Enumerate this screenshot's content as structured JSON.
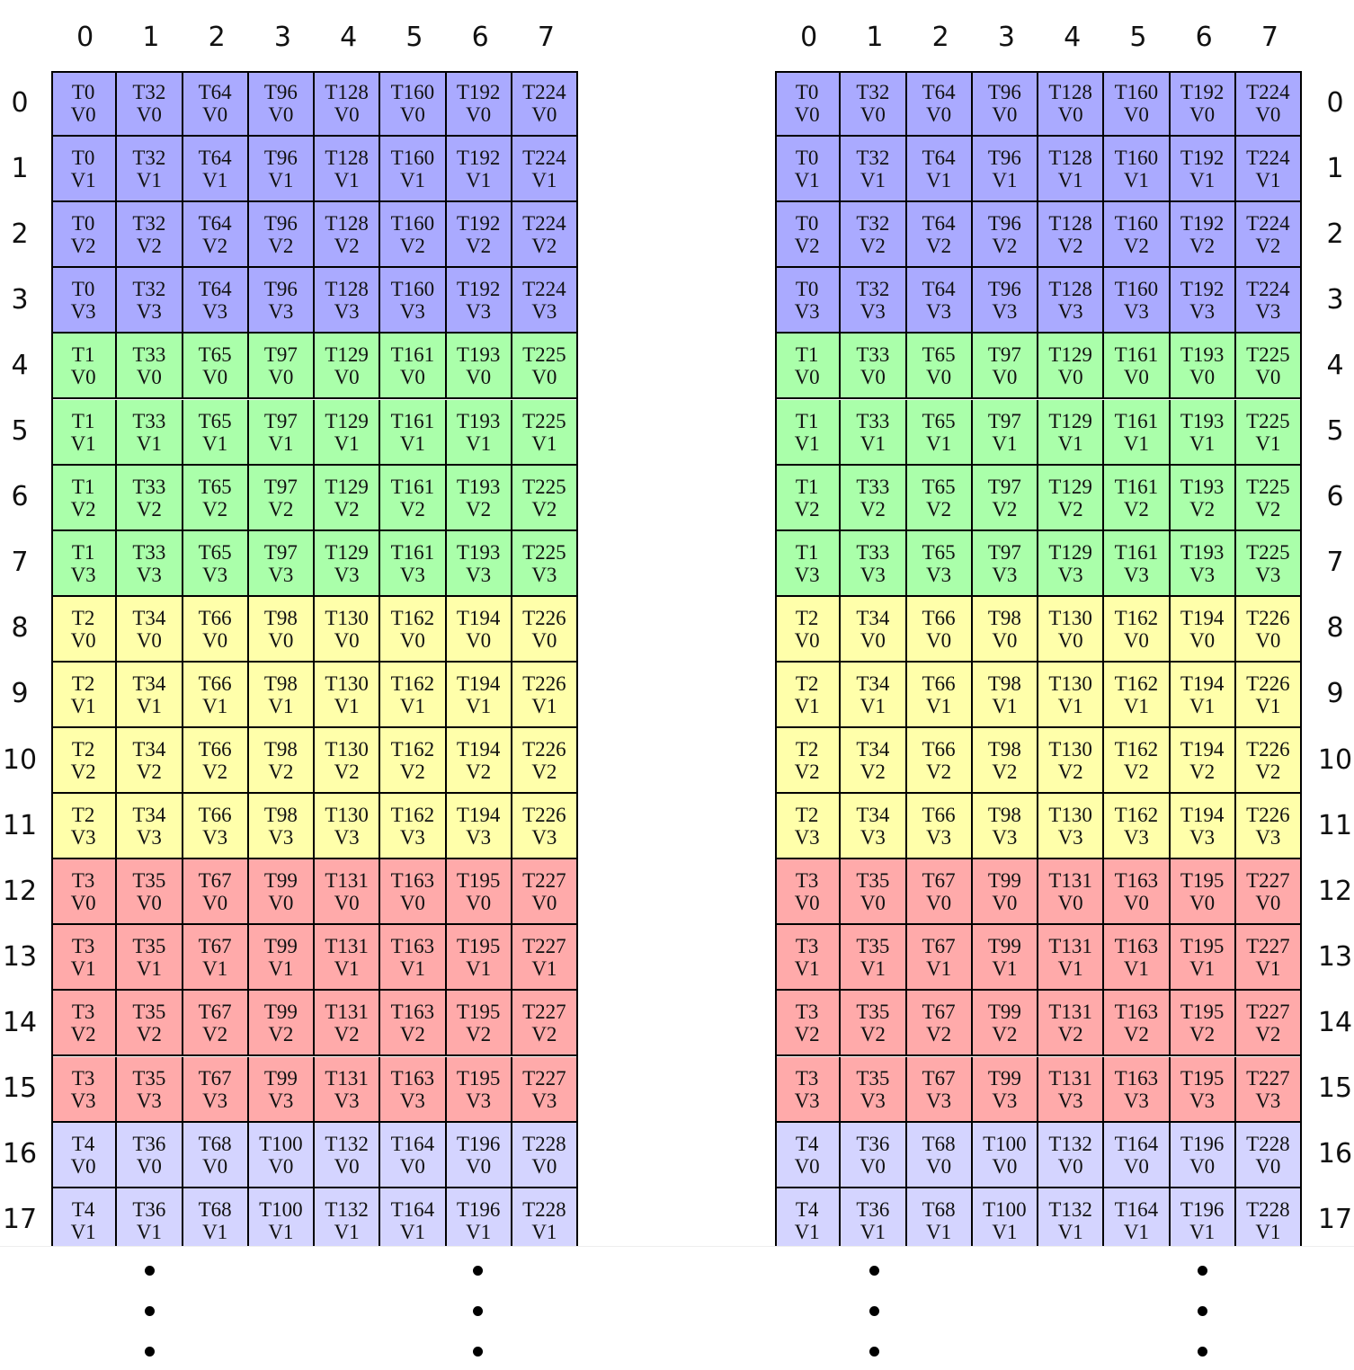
{
  "column_labels": [
    "0",
    "1",
    "2",
    "3",
    "4",
    "5",
    "6",
    "7"
  ],
  "colors": {
    "blue": "#aaaaff",
    "green": "#aaffaa",
    "yellow": "#ffffaa",
    "red": "#ffaaaa",
    "lavender": "#d4d4ff"
  },
  "rows": [
    {
      "label": "0",
      "value": "V0",
      "color": "#aaaaff",
      "threads": [
        "T0",
        "T32",
        "T64",
        "T96",
        "T128",
        "T160",
        "T192",
        "T224"
      ]
    },
    {
      "label": "1",
      "value": "V1",
      "color": "#aaaaff",
      "threads": [
        "T0",
        "T32",
        "T64",
        "T96",
        "T128",
        "T160",
        "T192",
        "T224"
      ]
    },
    {
      "label": "2",
      "value": "V2",
      "color": "#aaaaff",
      "threads": [
        "T0",
        "T32",
        "T64",
        "T96",
        "T128",
        "T160",
        "T192",
        "T224"
      ]
    },
    {
      "label": "3",
      "value": "V3",
      "color": "#aaaaff",
      "threads": [
        "T0",
        "T32",
        "T64",
        "T96",
        "T128",
        "T160",
        "T192",
        "T224"
      ]
    },
    {
      "label": "4",
      "value": "V0",
      "color": "#aaffaa",
      "threads": [
        "T1",
        "T33",
        "T65",
        "T97",
        "T129",
        "T161",
        "T193",
        "T225"
      ]
    },
    {
      "label": "5",
      "value": "V1",
      "color": "#aaffaa",
      "threads": [
        "T1",
        "T33",
        "T65",
        "T97",
        "T129",
        "T161",
        "T193",
        "T225"
      ]
    },
    {
      "label": "6",
      "value": "V2",
      "color": "#aaffaa",
      "threads": [
        "T1",
        "T33",
        "T65",
        "T97",
        "T129",
        "T161",
        "T193",
        "T225"
      ]
    },
    {
      "label": "7",
      "value": "V3",
      "color": "#aaffaa",
      "threads": [
        "T1",
        "T33",
        "T65",
        "T97",
        "T129",
        "T161",
        "T193",
        "T225"
      ]
    },
    {
      "label": "8",
      "value": "V0",
      "color": "#ffffaa",
      "threads": [
        "T2",
        "T34",
        "T66",
        "T98",
        "T130",
        "T162",
        "T194",
        "T226"
      ]
    },
    {
      "label": "9",
      "value": "V1",
      "color": "#ffffaa",
      "threads": [
        "T2",
        "T34",
        "T66",
        "T98",
        "T130",
        "T162",
        "T194",
        "T226"
      ]
    },
    {
      "label": "10",
      "value": "V2",
      "color": "#ffffaa",
      "threads": [
        "T2",
        "T34",
        "T66",
        "T98",
        "T130",
        "T162",
        "T194",
        "T226"
      ]
    },
    {
      "label": "11",
      "value": "V3",
      "color": "#ffffaa",
      "threads": [
        "T2",
        "T34",
        "T66",
        "T98",
        "T130",
        "T162",
        "T194",
        "T226"
      ]
    },
    {
      "label": "12",
      "value": "V0",
      "color": "#ffaaaa",
      "threads": [
        "T3",
        "T35",
        "T67",
        "T99",
        "T131",
        "T163",
        "T195",
        "T227"
      ]
    },
    {
      "label": "13",
      "value": "V1",
      "color": "#ffaaaa",
      "threads": [
        "T3",
        "T35",
        "T67",
        "T99",
        "T131",
        "T163",
        "T195",
        "T227"
      ]
    },
    {
      "label": "14",
      "value": "V2",
      "color": "#ffaaaa",
      "threads": [
        "T3",
        "T35",
        "T67",
        "T99",
        "T131",
        "T163",
        "T195",
        "T227"
      ]
    },
    {
      "label": "15",
      "value": "V3",
      "color": "#ffaaaa",
      "threads": [
        "T3",
        "T35",
        "T67",
        "T99",
        "T131",
        "T163",
        "T195",
        "T227"
      ]
    },
    {
      "label": "16",
      "value": "V0",
      "color": "#d4d4ff",
      "threads": [
        "T4",
        "T36",
        "T68",
        "T100",
        "T132",
        "T164",
        "T196",
        "T228"
      ]
    },
    {
      "label": "17",
      "value": "V1",
      "color": "#d4d4ff",
      "threads": [
        "T4",
        "T36",
        "T68",
        "T100",
        "T132",
        "T164",
        "T196",
        "T228"
      ]
    }
  ]
}
